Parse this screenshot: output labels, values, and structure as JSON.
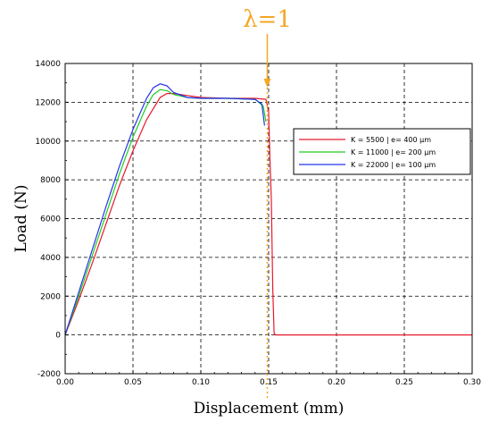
{
  "chart_data": {
    "type": "line",
    "title": "",
    "xlabel": "Displacement (mm)",
    "ylabel": "Load (N)",
    "xlim": [
      0,
      0.3
    ],
    "ylim": [
      -2000,
      14000
    ],
    "x_ticks": [
      "0.00",
      "0.05",
      "0.10",
      "0.15",
      "0.20",
      "0.25",
      "0.30"
    ],
    "y_ticks": [
      "-2000",
      "0",
      "2000",
      "4000",
      "6000",
      "8000",
      "10000",
      "12000",
      "14000"
    ],
    "grid": true,
    "legend_position": "right",
    "annotation": {
      "label": "λ=1",
      "x": 0.149,
      "color": "#f5a623"
    },
    "series": [
      {
        "name": "K = 5500 | e= 400 µm",
        "color": "#e8192c",
        "points": [
          [
            0,
            0
          ],
          [
            0.01,
            1800
          ],
          [
            0.02,
            3700
          ],
          [
            0.03,
            5700
          ],
          [
            0.04,
            7700
          ],
          [
            0.05,
            9500
          ],
          [
            0.06,
            11100
          ],
          [
            0.07,
            12250
          ],
          [
            0.075,
            12450
          ],
          [
            0.08,
            12450
          ],
          [
            0.09,
            12350
          ],
          [
            0.1,
            12250
          ],
          [
            0.12,
            12200
          ],
          [
            0.14,
            12200
          ],
          [
            0.148,
            12150
          ],
          [
            0.15,
            11500
          ],
          [
            0.151,
            9000
          ],
          [
            0.152,
            7000
          ],
          [
            0.153,
            2400
          ],
          [
            0.154,
            100
          ],
          [
            0.155,
            0
          ],
          [
            0.3,
            0
          ]
        ]
      },
      {
        "name": "K = 11000 | e= 200 µm",
        "color": "#22cc22",
        "points": [
          [
            0,
            0
          ],
          [
            0.01,
            2000
          ],
          [
            0.02,
            4100
          ],
          [
            0.03,
            6200
          ],
          [
            0.04,
            8300
          ],
          [
            0.05,
            10200
          ],
          [
            0.06,
            11800
          ],
          [
            0.065,
            12400
          ],
          [
            0.07,
            12650
          ],
          [
            0.075,
            12600
          ],
          [
            0.08,
            12400
          ],
          [
            0.09,
            12250
          ],
          [
            0.1,
            12200
          ],
          [
            0.12,
            12200
          ],
          [
            0.14,
            12150
          ],
          [
            0.146,
            11800
          ],
          [
            0.148,
            11000
          ]
        ]
      },
      {
        "name": "K = 22000 | e= 100 µm",
        "color": "#2233ee",
        "points": [
          [
            0,
            0
          ],
          [
            0.01,
            2200
          ],
          [
            0.02,
            4400
          ],
          [
            0.03,
            6600
          ],
          [
            0.04,
            8700
          ],
          [
            0.05,
            10600
          ],
          [
            0.06,
            12200
          ],
          [
            0.065,
            12750
          ],
          [
            0.07,
            12950
          ],
          [
            0.075,
            12850
          ],
          [
            0.08,
            12500
          ],
          [
            0.09,
            12250
          ],
          [
            0.1,
            12200
          ],
          [
            0.12,
            12200
          ],
          [
            0.14,
            12150
          ],
          [
            0.145,
            11900
          ],
          [
            0.147,
            10800
          ]
        ]
      }
    ]
  }
}
